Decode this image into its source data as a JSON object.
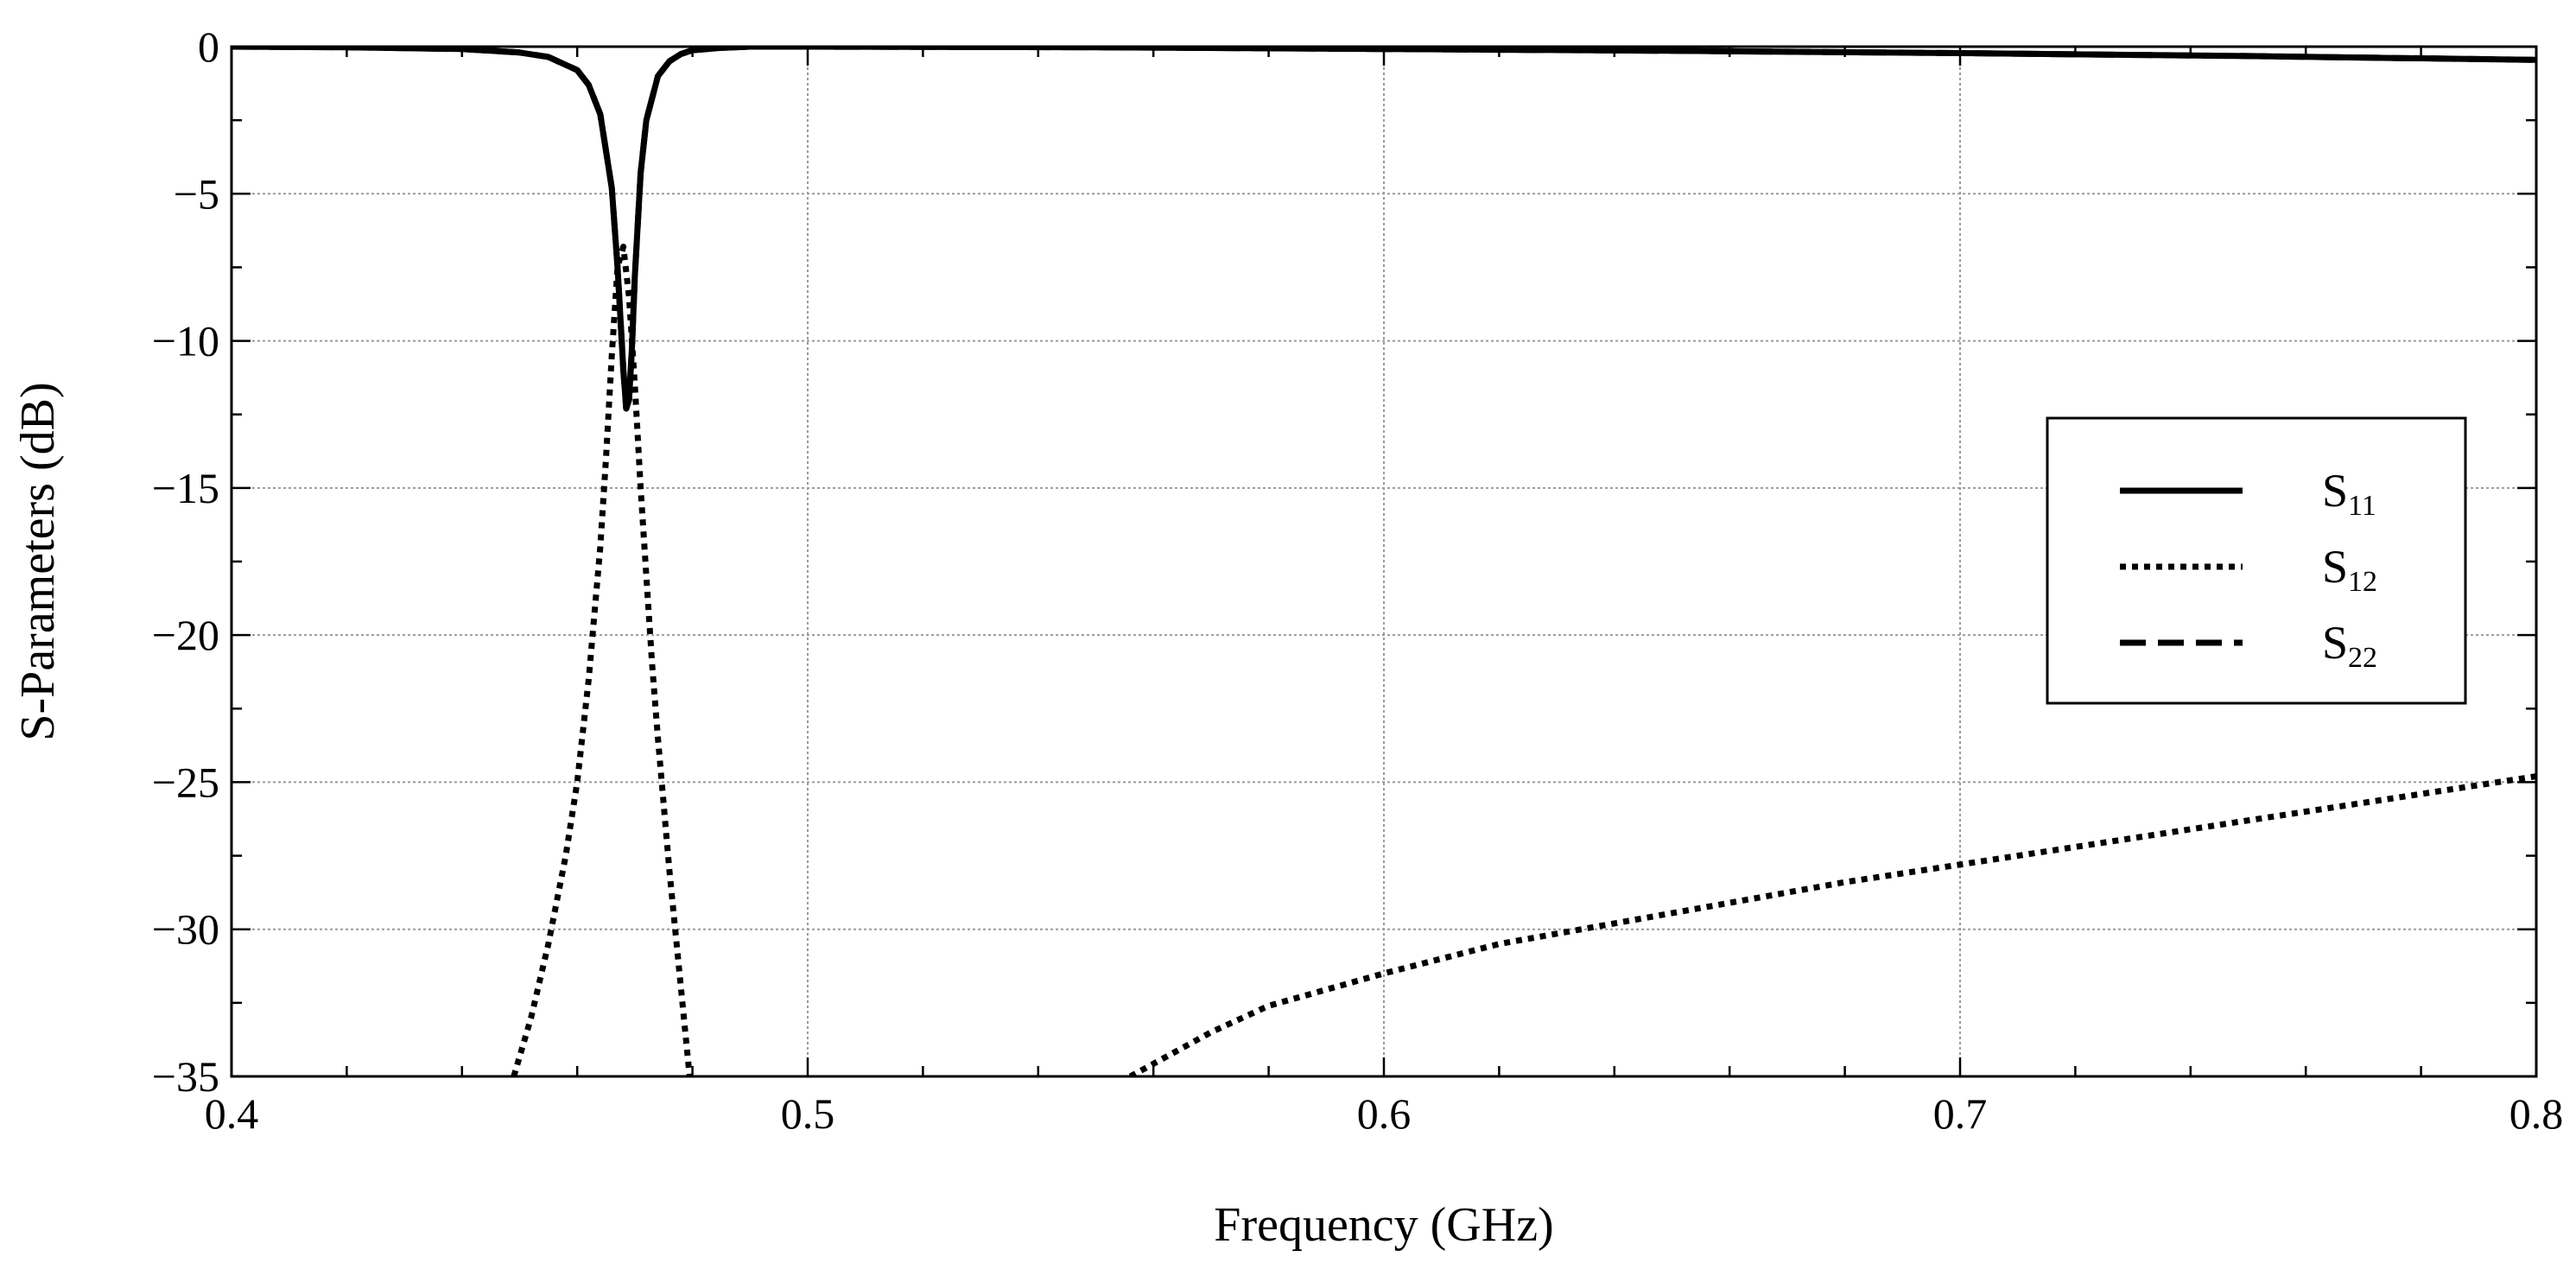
{
  "chart_data": {
    "type": "line",
    "title": "",
    "xlabel": "Frequency (GHz)",
    "ylabel": "S-Parameters (dB)",
    "xlim": [
      0.4,
      0.8
    ],
    "ylim": [
      -35,
      0
    ],
    "grid": true,
    "x_ticks": [
      0.4,
      0.5,
      0.6,
      0.7,
      0.8
    ],
    "x_tick_labels": [
      "0.4",
      "0.5",
      "0.6",
      "0.7",
      "0.8"
    ],
    "y_ticks": [
      0,
      -5,
      -10,
      -15,
      -20,
      -25,
      -30,
      -35
    ],
    "y_tick_labels": [
      "0",
      "−5",
      "−10",
      "−15",
      "−20",
      "−25",
      "−30",
      "−35"
    ],
    "legend_position": "center-right",
    "series": [
      {
        "name": "S11",
        "label_main": "S",
        "label_sub": "11",
        "style": "solid",
        "color": "#000000",
        "x": [
          0.4,
          0.42,
          0.44,
          0.45,
          0.455,
          0.46,
          0.462,
          0.464,
          0.466,
          0.467,
          0.468,
          0.4685,
          0.469,
          0.4695,
          0.47,
          0.471,
          0.472,
          0.474,
          0.476,
          0.478,
          0.48,
          0.485,
          0.49,
          0.5,
          0.55,
          0.6,
          0.65,
          0.7,
          0.75,
          0.8
        ],
        "y": [
          0.0,
          -0.02,
          -0.08,
          -0.2,
          -0.35,
          -0.8,
          -1.3,
          -2.3,
          -4.8,
          -7.5,
          -11.0,
          -12.3,
          -12.0,
          -10.2,
          -7.8,
          -4.3,
          -2.5,
          -1.0,
          -0.5,
          -0.25,
          -0.12,
          -0.04,
          0.0,
          0.0,
          -0.02,
          -0.08,
          -0.14,
          -0.22,
          -0.32,
          -0.45
        ]
      },
      {
        "name": "S12",
        "label_main": "S",
        "label_sub": "12",
        "style": "dotted",
        "color": "#000000",
        "x": [
          0.449,
          0.452,
          0.455,
          0.458,
          0.46,
          0.462,
          0.464,
          0.465,
          0.466,
          0.467,
          0.468,
          0.469,
          0.47,
          0.471,
          0.472,
          0.473,
          0.474,
          0.476,
          0.478,
          0.4795,
          null,
          0.556,
          0.57,
          0.58,
          0.6,
          0.62,
          0.64,
          0.66,
          0.68,
          0.7,
          0.72,
          0.74,
          0.76,
          0.78,
          0.8
        ],
        "y": [
          -35.0,
          -33.0,
          -30.5,
          -27.5,
          -25.0,
          -21.5,
          -17.0,
          -14.0,
          -10.5,
          -7.5,
          -6.8,
          -8.5,
          -11.5,
          -15.0,
          -18.0,
          -21.0,
          -23.5,
          -28.0,
          -32.0,
          -35.0,
          null,
          -35.0,
          -33.5,
          -32.6,
          -31.5,
          -30.5,
          -29.8,
          -29.1,
          -28.4,
          -27.8,
          -27.2,
          -26.6,
          -26.0,
          -25.4,
          -24.8
        ]
      },
      {
        "name": "S22",
        "label_main": "S",
        "label_sub": "22",
        "style": "dashed",
        "color": "#000000",
        "x": [
          0.4,
          0.42,
          0.44,
          0.45,
          0.455,
          0.46,
          0.462,
          0.464,
          0.466,
          0.467,
          0.468,
          0.4685,
          0.469,
          0.4695,
          0.47,
          0.471,
          0.472,
          0.474,
          0.476,
          0.478,
          0.48,
          0.485,
          0.49,
          0.5,
          0.55,
          0.6,
          0.65,
          0.7,
          0.75,
          0.8
        ],
        "y": [
          0.0,
          -0.02,
          -0.08,
          -0.2,
          -0.35,
          -0.8,
          -1.3,
          -2.3,
          -4.8,
          -7.5,
          -11.0,
          -12.3,
          -12.0,
          -10.2,
          -7.8,
          -4.3,
          -2.5,
          -1.0,
          -0.5,
          -0.25,
          -0.12,
          -0.04,
          0.0,
          0.0,
          -0.02,
          -0.08,
          -0.14,
          -0.22,
          -0.32,
          -0.45
        ]
      }
    ]
  }
}
